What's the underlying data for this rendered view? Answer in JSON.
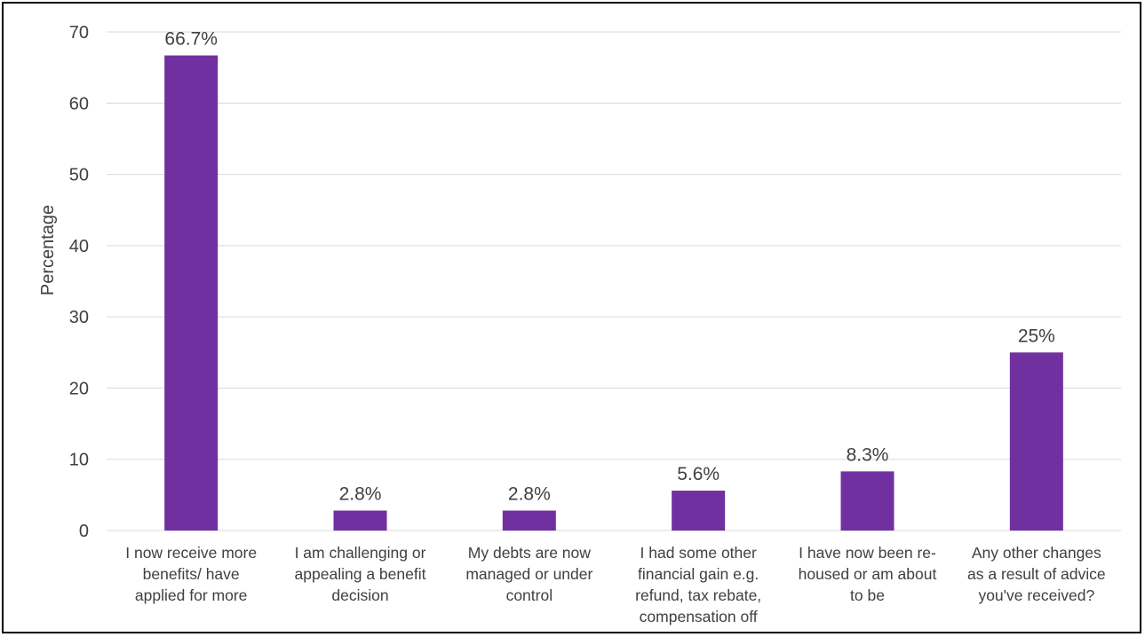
{
  "chart_data": {
    "type": "bar",
    "ylabel": "Percentage",
    "ylim": [
      0,
      70
    ],
    "yticks": [
      0,
      10,
      20,
      30,
      40,
      50,
      60,
      70
    ],
    "grid": true,
    "categories": [
      [
        "I now receive more",
        "benefits/ have",
        "applied for more"
      ],
      [
        "I am challenging or",
        "appealing a benefit",
        "decision"
      ],
      [
        "My debts are now",
        "managed or under",
        "control"
      ],
      [
        "I had some other",
        "financial gain e.g.",
        "refund, tax rebate,",
        "compensation off"
      ],
      [
        "I have now been re-",
        "housed or am about",
        "to be"
      ],
      [
        "Any other changes",
        "as a result of advice",
        "you've received?"
      ]
    ],
    "values": [
      66.7,
      2.8,
      2.8,
      5.6,
      8.3,
      25
    ],
    "data_labels": [
      "66.7%",
      "2.8%",
      "2.8%",
      "5.6%",
      "8.3%",
      "25%"
    ],
    "bar_color": "#7030a0",
    "grid_color": "#d9d9d9",
    "text_color": "#404040"
  }
}
